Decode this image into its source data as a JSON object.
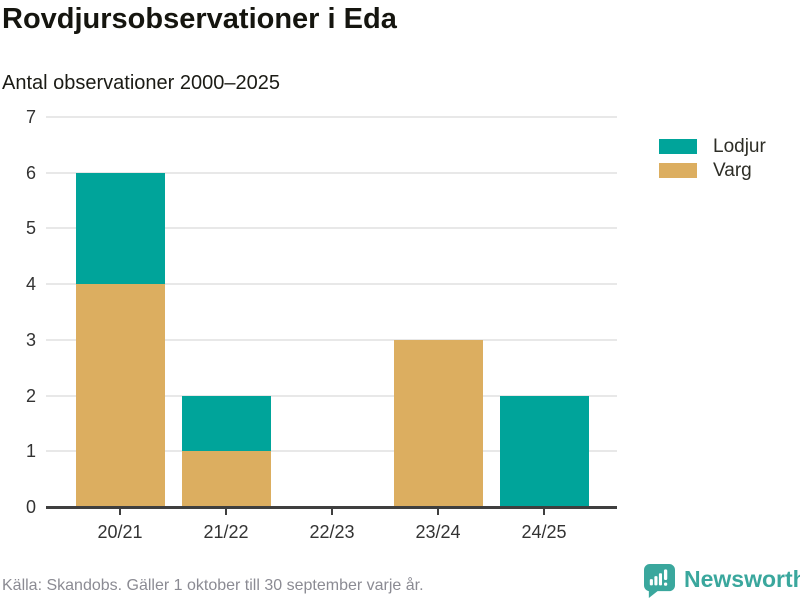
{
  "header": {
    "title": "Rovdjursobservationer i Eda",
    "subtitle": "Antal observationer 2000–2025"
  },
  "chart_data": {
    "type": "bar",
    "stacked": true,
    "title": "Rovdjursobservationer i Eda",
    "subtitle": "Antal observationer 2000–2025",
    "categories": [
      "20/21",
      "21/22",
      "22/23",
      "23/24",
      "24/25"
    ],
    "series": [
      {
        "name": "Lodjur",
        "color": "#00a49a",
        "values": [
          2,
          1,
          0,
          0,
          2
        ]
      },
      {
        "name": "Varg",
        "color": "#dcae60",
        "values": [
          4,
          1,
          0,
          3,
          0
        ]
      }
    ],
    "stack_order_bottom_to_top": [
      "Varg",
      "Lodjur"
    ],
    "xlabel": "",
    "ylabel": "",
    "ylim": [
      0,
      7
    ],
    "yticks": [
      0,
      1,
      2,
      3,
      4,
      5,
      6,
      7
    ],
    "grid": true,
    "legend_position": "right"
  },
  "footer": {
    "source": "Källa: Skandobs. Gäller 1 oktober till 30 september varje år.",
    "brand": "Newsworthy"
  },
  "icons": {
    "brand_logo": "bar-chart-speech-bubble-icon"
  },
  "colors": {
    "lodjur": "#00a49a",
    "varg": "#dcae60",
    "brand": "#3aa79d",
    "grid": "#e8e8e8",
    "axis": "#3f3f3f",
    "text_dark": "#15150f",
    "text_axis": "#333333",
    "text_footer": "#8b8b93"
  }
}
